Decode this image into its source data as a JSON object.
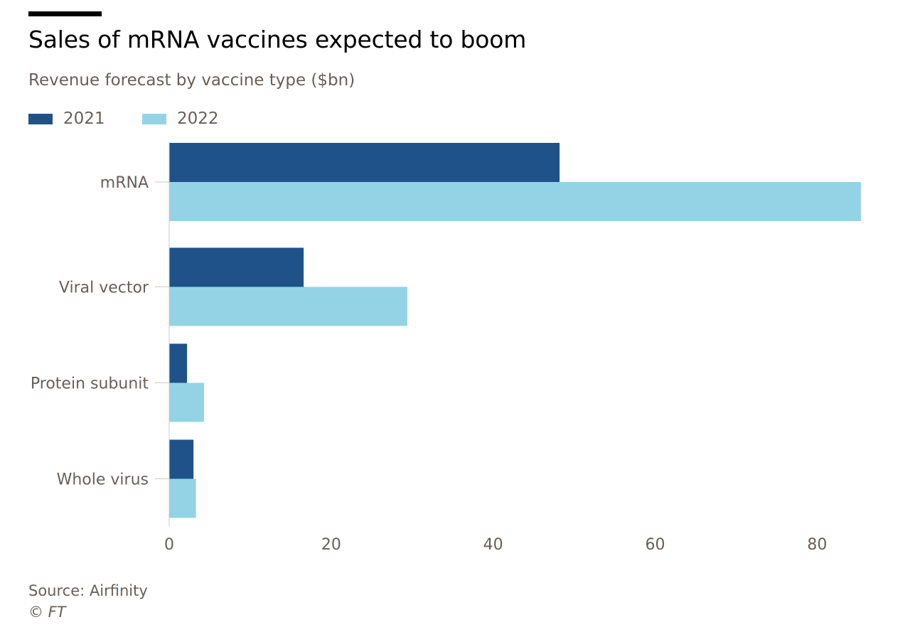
{
  "chart_data": {
    "type": "bar",
    "orientation": "horizontal",
    "title": "Sales of mRNA vaccines expected to boom",
    "subtitle": "Revenue forecast by vaccine type ($bn)",
    "categories": [
      "mRNA",
      "Viral vector",
      "Protein subunit",
      "Whole virus"
    ],
    "series": [
      {
        "name": "2021",
        "color": "#1f5288",
        "values": [
          48.2,
          16.6,
          2.2,
          3.0
        ]
      },
      {
        "name": "2022",
        "color": "#94d3e6",
        "values": [
          85.4,
          29.4,
          4.3,
          3.3
        ]
      }
    ],
    "xlim": [
      0,
      85.5
    ],
    "xticks": [
      0,
      20,
      40,
      60,
      80
    ],
    "xlabel": "",
    "ylabel": "",
    "grid": false,
    "legend": "top-left"
  },
  "footer": {
    "source": "Source: Airfinity",
    "credit": "© FT"
  }
}
